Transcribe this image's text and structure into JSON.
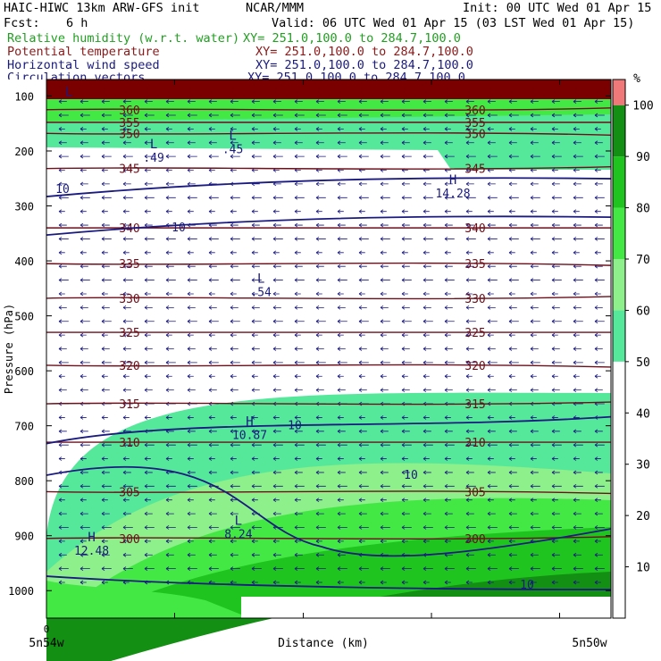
{
  "header": {
    "title": "HAIC-HIWC 13km ARW-GFS init",
    "center": "NCAR/MMM",
    "init": "Init: 00 UTC Wed 01 Apr 15",
    "fcst_label": "Fcst:",
    "fcst_value": "6 h",
    "valid": "Valid: 06 UTC Wed 01 Apr 15 (03 LST Wed 01 Apr 15)",
    "fields": [
      {
        "name": "Relative humidity (w.r.t. water)",
        "xy": "XY= 251.0,100.0 to 284.7,100.0",
        "color": "#20a020"
      },
      {
        "name": "Potential temperature",
        "xy": "XY= 251.0,100.0 to 284.7,100.0",
        "color": "#8b1a1a"
      },
      {
        "name": "Horizontal wind speed",
        "xy": "XY= 251.0,100.0 to 284.7,100.0",
        "color": "#1a1a80"
      },
      {
        "name": "Circulation vectors",
        "xy": "XY= 251.0,100.0 to 284.7,100.0",
        "color": "#1a1a80"
      }
    ]
  },
  "chart_data": {
    "type": "heatmap",
    "ylabel": "Pressure (hPa)",
    "xlabel": "Distance (km)",
    "x_origin_label": "0",
    "x_left_label": "5n54w",
    "x_right_label": "5n50w",
    "y_ticks": [
      100,
      200,
      300,
      400,
      500,
      600,
      700,
      800,
      900,
      1000
    ],
    "ylim": [
      1050,
      70
    ],
    "colorbar": {
      "unit": "%",
      "ticks": [
        10,
        20,
        30,
        40,
        50,
        60,
        70,
        80,
        90,
        100
      ],
      "levels": [
        {
          "from": 0,
          "to": 50,
          "color": "#ffffff"
        },
        {
          "from": 50,
          "to": 60,
          "color": "#55e89a"
        },
        {
          "from": 60,
          "to": 70,
          "color": "#8ef08a"
        },
        {
          "from": 70,
          "to": 80,
          "color": "#44e844"
        },
        {
          "from": 80,
          "to": 90,
          "color": "#1fc41f"
        },
        {
          "from": 90,
          "to": 100,
          "color": "#138f13"
        },
        {
          "from": 100,
          "to": 105,
          "color": "#f07878"
        }
      ]
    },
    "theta_contours": [
      {
        "value": "360",
        "p": 125
      },
      {
        "value": "355",
        "p": 148
      },
      {
        "value": "350",
        "p": 168
      },
      {
        "value": "345",
        "p": 232
      },
      {
        "value": "340",
        "p": 340
      },
      {
        "value": "335",
        "p": 405
      },
      {
        "value": "330",
        "p": 468
      },
      {
        "value": "325",
        "p": 530
      },
      {
        "value": "320",
        "p": 590
      },
      {
        "value": "315",
        "p": 660
      },
      {
        "value": "310",
        "p": 730
      },
      {
        "value": "305",
        "p": 820
      },
      {
        "value": "300",
        "p": 905
      }
    ],
    "wind_contours": [
      {
        "value": "10",
        "p": 270
      },
      {
        "value": "10",
        "p": 340
      },
      {
        "value": "10",
        "p": 700
      },
      {
        "value": "10",
        "p": 790
      },
      {
        "value": "10",
        "p": 990
      }
    ],
    "annotations": [
      {
        "type": "L",
        "value": ".49",
        "x": 0.19,
        "p": 195
      },
      {
        "type": "L",
        "value": ".45",
        "x": 0.33,
        "p": 180
      },
      {
        "type": "H",
        "value": "14.28",
        "x": 0.72,
        "p": 260
      },
      {
        "type": "L",
        "value": ".54",
        "x": 0.38,
        "p": 440
      },
      {
        "type": "H",
        "value": "10.87",
        "x": 0.36,
        "p": 700
      },
      {
        "type": "L",
        "value": "8.24",
        "x": 0.34,
        "p": 880
      },
      {
        "type": "H",
        "value": "12.48",
        "x": 0.08,
        "p": 910
      },
      {
        "type": "L",
        "value": "",
        "x": 0.04,
        "p": 100
      }
    ]
  }
}
